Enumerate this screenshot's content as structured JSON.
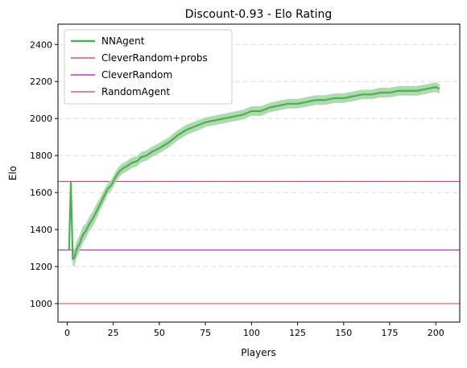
{
  "chart_data": {
    "type": "line",
    "title": "Discount-0.93 - Elo Rating",
    "xlabel": "Players",
    "ylabel": "Elo",
    "xlim": [
      -5,
      213
    ],
    "ylim": [
      900,
      2510
    ],
    "xticks": [
      0,
      25,
      50,
      75,
      100,
      125,
      150,
      175,
      200
    ],
    "yticks": [
      1000,
      1200,
      1400,
      1600,
      1800,
      2000,
      2200,
      2400
    ],
    "grid": "y-dashed",
    "legend_position": "upper-left",
    "series": [
      {
        "name": "NNAgent",
        "color": "#4caf50",
        "band_color": "#a5d6a7",
        "x": [
          1,
          2,
          3,
          4,
          5,
          6,
          7,
          8,
          9,
          10,
          12,
          14,
          16,
          18,
          20,
          22,
          24,
          26,
          28,
          30,
          32,
          35,
          38,
          40,
          43,
          46,
          50,
          55,
          60,
          65,
          70,
          75,
          80,
          85,
          90,
          95,
          100,
          105,
          110,
          115,
          120,
          125,
          130,
          135,
          140,
          145,
          150,
          155,
          160,
          165,
          170,
          175,
          180,
          185,
          190,
          195,
          200,
          202
        ],
        "values": [
          1290,
          1660,
          1240,
          1250,
          1290,
          1310,
          1330,
          1360,
          1380,
          1390,
          1430,
          1460,
          1500,
          1540,
          1580,
          1620,
          1640,
          1680,
          1710,
          1730,
          1740,
          1760,
          1770,
          1790,
          1800,
          1820,
          1840,
          1870,
          1910,
          1940,
          1960,
          1980,
          1990,
          2000,
          2010,
          2020,
          2040,
          2040,
          2060,
          2070,
          2080,
          2080,
          2090,
          2100,
          2100,
          2110,
          2110,
          2120,
          2130,
          2130,
          2140,
          2140,
          2150,
          2150,
          2150,
          2160,
          2170,
          2160
        ],
        "band_halfwidth": [
          10,
          15,
          40,
          45,
          45,
          45,
          45,
          45,
          45,
          40,
          40,
          40,
          40,
          35,
          35,
          30,
          30,
          30,
          30,
          28,
          28,
          28,
          28,
          28,
          28,
          28,
          28,
          28,
          28,
          28,
          28,
          26,
          26,
          26,
          26,
          26,
          26,
          26,
          26,
          26,
          26,
          26,
          26,
          26,
          26,
          26,
          26,
          26,
          26,
          26,
          26,
          26,
          26,
          26,
          26,
          26,
          26,
          26
        ]
      },
      {
        "name": "CleverRandom+probs",
        "color": "#e91e63",
        "y": 1660
      },
      {
        "name": "CleverRandom",
        "color": "#c000c0",
        "y": 1290
      },
      {
        "name": "RandomAgent",
        "color": "#e53935",
        "y": 1000
      }
    ]
  }
}
